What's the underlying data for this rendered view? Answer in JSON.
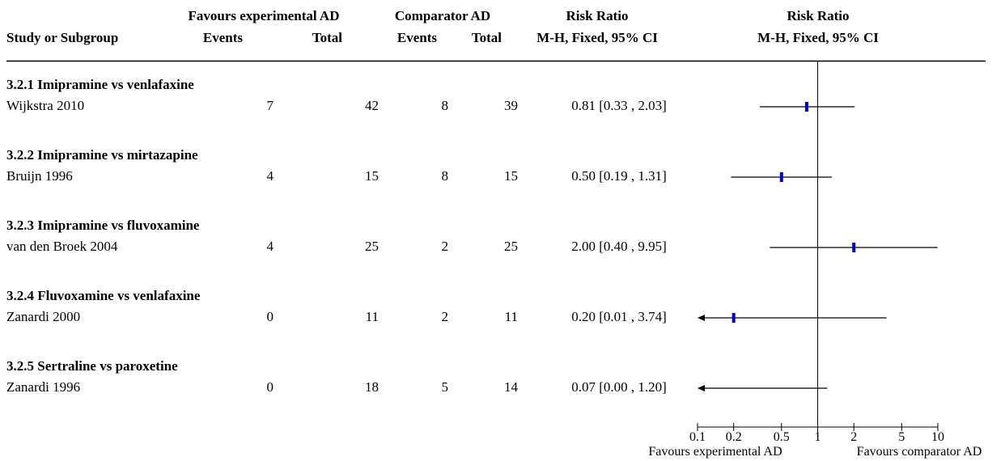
{
  "header": {
    "study": "Study or Subgroup",
    "exp_group": "Favours experimental AD",
    "comp_group": "Comparator AD",
    "events": "Events",
    "total": "Total",
    "rr_title": "Risk Ratio",
    "rr_method": "M-H, Fixed, 95% CI"
  },
  "chart_data": {
    "type": "forest",
    "x_scale": "log",
    "xlim": [
      0.1,
      10
    ],
    "x_ticks": [
      0.1,
      0.2,
      0.5,
      1,
      2,
      5,
      10
    ],
    "x_tick_labels": [
      "0.1",
      "0.2",
      "0.5",
      "1",
      "2",
      "5",
      "10"
    ],
    "reference_line": 1,
    "footer_left": "Favours experimental AD",
    "footer_right": "Favours comparator AD",
    "subgroups": [
      {
        "label": "3.2.1 Imipramine vs venlafaxine",
        "study": {
          "name": "Wijkstra 2010",
          "exp_events": "7",
          "exp_total": "42",
          "comp_events": "8",
          "comp_total": "39",
          "rr_text": "0.81 [0.33 , 2.03]",
          "rr": 0.81,
          "lo": 0.33,
          "hi": 2.03
        }
      },
      {
        "label": "3.2.2 Imipramine vs mirtazapine",
        "study": {
          "name": "Bruijn 1996",
          "exp_events": "4",
          "exp_total": "15",
          "comp_events": "8",
          "comp_total": "15",
          "rr_text": "0.50 [0.19 , 1.31]",
          "rr": 0.5,
          "lo": 0.19,
          "hi": 1.31
        }
      },
      {
        "label": "3.2.3 Imipramine vs fluvoxamine",
        "study": {
          "name": "van den Broek 2004",
          "exp_events": "4",
          "exp_total": "25",
          "comp_events": "2",
          "comp_total": "25",
          "rr_text": "2.00 [0.40 , 9.95]",
          "rr": 2.0,
          "lo": 0.4,
          "hi": 9.95
        }
      },
      {
        "label": "3.2.4 Fluvoxamine vs venlafaxine",
        "study": {
          "name": "Zanardi 2000",
          "exp_events": "0",
          "exp_total": "11",
          "comp_events": "2",
          "comp_total": "11",
          "rr_text": "0.20 [0.01 , 3.74]",
          "rr": 0.2,
          "lo": 0.01,
          "hi": 3.74
        }
      },
      {
        "label": "3.2.5 Sertraline vs paroxetine",
        "study": {
          "name": "Zanardi 1996",
          "exp_events": "0",
          "exp_total": "18",
          "comp_events": "5",
          "comp_total": "14",
          "rr_text": "0.07 [0.00 , 1.20]",
          "rr": 0.07,
          "lo": 0.0,
          "hi": 1.2
        }
      }
    ],
    "colors": {
      "marker": "#0000cc",
      "line": "#000000"
    }
  }
}
